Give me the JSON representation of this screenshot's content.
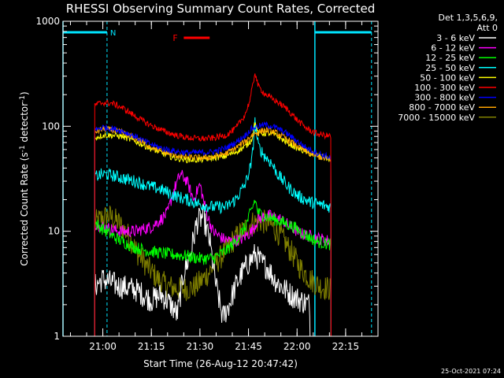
{
  "chart_data": {
    "type": "line",
    "title": "RHESSI Observing Summary Count Rates, Corrected",
    "xlabel": "Start Time (26-Aug-12 20:47:42)",
    "ylabel_main": "Corrected Count Rate (s",
    "ylabel_sup1": "-1",
    "ylabel_mid": " detector",
    "ylabel_sup2": "-1",
    "ylabel_end": ")",
    "y_scale": "log",
    "ylim": [
      1,
      1000
    ],
    "xlim": [
      47.7,
      145
    ],
    "x_ticks": [
      {
        "v": 60,
        "label": "21:00"
      },
      {
        "v": 75,
        "label": "21:15"
      },
      {
        "v": 90,
        "label": "21:30"
      },
      {
        "v": 105,
        "label": "21:45"
      },
      {
        "v": 120,
        "label": "22:00"
      },
      {
        "v": 135,
        "label": "22:15"
      }
    ],
    "y_ticks": [
      {
        "v": 1,
        "label": "1"
      },
      {
        "v": 10,
        "label": "10"
      },
      {
        "v": 100,
        "label": "100"
      },
      {
        "v": 1000,
        "label": "1000"
      }
    ],
    "legend_header": [
      "Det 1,3,5,6,9,",
      "Att 0"
    ],
    "legend_placement": "right-outside",
    "flag_labels": {
      "N": "N",
      "F": "F"
    },
    "flare_flag": {
      "start": 85,
      "end": 93,
      "color": "#ff0000"
    },
    "night_segments": [
      {
        "start": 47.7,
        "end": 61.3
      },
      {
        "start": 125.5,
        "end": 143
      }
    ],
    "vlines_dashed": [
      61.3,
      143
    ],
    "vlines_solid": [
      47.7,
      125.5
    ],
    "timestamp": "25-Oct-2021 07:24",
    "series": [
      {
        "name": "3 - 6 keV",
        "color": "#000000",
        "start": 57.5,
        "end": 124.0,
        "points": [
          [
            57.5,
            3
          ],
          [
            60,
            3.5
          ],
          [
            65,
            3.0
          ],
          [
            70,
            2.8
          ],
          [
            75,
            2.2
          ],
          [
            78,
            2.5
          ],
          [
            81,
            2.0
          ],
          [
            83,
            1.6
          ],
          [
            85,
            4
          ],
          [
            87,
            6
          ],
          [
            89,
            12
          ],
          [
            91,
            14
          ],
          [
            93,
            8
          ],
          [
            95,
            3
          ],
          [
            97,
            1.5
          ],
          [
            99,
            2.0
          ],
          [
            101,
            3
          ],
          [
            103,
            4
          ],
          [
            105,
            5
          ],
          [
            107,
            6
          ],
          [
            109,
            5
          ],
          [
            111,
            4.5
          ],
          [
            113,
            3.5
          ],
          [
            115,
            3
          ],
          [
            118,
            2.5
          ],
          [
            121,
            2.2
          ],
          [
            124,
            2.0
          ]
        ]
      },
      {
        "name": "6 - 12 keV",
        "color": "#ff00ff",
        "start": 57.5,
        "end": 130.5,
        "points": [
          [
            57.5,
            12
          ],
          [
            60,
            11
          ],
          [
            65,
            10
          ],
          [
            70,
            10
          ],
          [
            75,
            11
          ],
          [
            78,
            13
          ],
          [
            80,
            15
          ],
          [
            82,
            25
          ],
          [
            84,
            35
          ],
          [
            86,
            30
          ],
          [
            88,
            20
          ],
          [
            90,
            28
          ],
          [
            92,
            15
          ],
          [
            94,
            10
          ],
          [
            97,
            8.5
          ],
          [
            100,
            8
          ],
          [
            103,
            8.5
          ],
          [
            106,
            10
          ],
          [
            108,
            13
          ],
          [
            110,
            14
          ],
          [
            112,
            14
          ],
          [
            115,
            13
          ],
          [
            118,
            11
          ],
          [
            121,
            9.5
          ],
          [
            124,
            9
          ],
          [
            127,
            8.5
          ],
          [
            130.5,
            8
          ]
        ]
      },
      {
        "name": "12 - 25 keV",
        "color": "#00ff00",
        "start": 57.5,
        "end": 130.5,
        "points": [
          [
            57.5,
            12
          ],
          [
            60,
            10.5
          ],
          [
            63,
            9
          ],
          [
            66,
            8
          ],
          [
            70,
            7
          ],
          [
            74,
            6.5
          ],
          [
            78,
            6.2
          ],
          [
            82,
            6
          ],
          [
            86,
            5.8
          ],
          [
            90,
            5.5
          ],
          [
            94,
            5.5
          ],
          [
            98,
            6.5
          ],
          [
            101,
            8
          ],
          [
            104,
            11
          ],
          [
            106,
            16
          ],
          [
            107,
            20
          ],
          [
            108,
            15
          ],
          [
            110,
            14
          ],
          [
            113,
            13
          ],
          [
            116,
            12
          ],
          [
            119,
            11
          ],
          [
            122,
            9.5
          ],
          [
            126,
            8
          ],
          [
            130.5,
            7.5
          ]
        ]
      },
      {
        "name": "25 - 50 keV",
        "color": "#00ffff",
        "start": 57.5,
        "end": 130.5,
        "points": [
          [
            57.5,
            33
          ],
          [
            60,
            35
          ],
          [
            63,
            34
          ],
          [
            66,
            32
          ],
          [
            70,
            30
          ],
          [
            74,
            27
          ],
          [
            78,
            25
          ],
          [
            82,
            22
          ],
          [
            86,
            20
          ],
          [
            90,
            18
          ],
          [
            94,
            17
          ],
          [
            98,
            17
          ],
          [
            101,
            20
          ],
          [
            104,
            28
          ],
          [
            106,
            45
          ],
          [
            107,
            110
          ],
          [
            108,
            65
          ],
          [
            110,
            52
          ],
          [
            112,
            45
          ],
          [
            114,
            35
          ],
          [
            117,
            27
          ],
          [
            120,
            22
          ],
          [
            124,
            19
          ],
          [
            127,
            18
          ],
          [
            130.5,
            17
          ]
        ]
      },
      {
        "name": "50 - 100 keV",
        "color": "#ffff00",
        "start": 57.5,
        "end": 130.5,
        "points": [
          [
            57.5,
            78
          ],
          [
            60,
            82
          ],
          [
            63,
            82
          ],
          [
            66,
            80
          ],
          [
            70,
            72
          ],
          [
            74,
            63
          ],
          [
            78,
            56
          ],
          [
            82,
            50
          ],
          [
            86,
            48
          ],
          [
            90,
            48
          ],
          [
            94,
            50
          ],
          [
            98,
            52
          ],
          [
            101,
            57
          ],
          [
            104,
            64
          ],
          [
            106,
            75
          ],
          [
            107,
            110
          ],
          [
            108,
            85
          ],
          [
            110,
            86
          ],
          [
            112,
            85
          ],
          [
            114,
            80
          ],
          [
            117,
            70
          ],
          [
            120,
            62
          ],
          [
            124,
            55
          ],
          [
            127,
            52
          ],
          [
            130.5,
            48
          ]
        ]
      },
      {
        "name": "100 - 300 keV",
        "color": "#ff0000",
        "start": 57.5,
        "end": 130.5,
        "points": [
          [
            57.5,
            160
          ],
          [
            60,
            168
          ],
          [
            63,
            165
          ],
          [
            66,
            150
          ],
          [
            70,
            125
          ],
          [
            74,
            105
          ],
          [
            78,
            92
          ],
          [
            82,
            83
          ],
          [
            86,
            78
          ],
          [
            90,
            76
          ],
          [
            94,
            77
          ],
          [
            98,
            82
          ],
          [
            101,
            95
          ],
          [
            104,
            130
          ],
          [
            105.5,
            180
          ],
          [
            106.5,
            260
          ],
          [
            107,
            330
          ],
          [
            108,
            240
          ],
          [
            110,
            205
          ],
          [
            112,
            185
          ],
          [
            114,
            170
          ],
          [
            117,
            145
          ],
          [
            120,
            115
          ],
          [
            123,
            95
          ],
          [
            126,
            85
          ],
          [
            130.5,
            80
          ]
        ]
      },
      {
        "name": "300 - 800 keV",
        "color": "#0000ff",
        "start": 57.5,
        "end": 130.5,
        "points": [
          [
            57.5,
            92
          ],
          [
            60,
            98
          ],
          [
            63,
            95
          ],
          [
            66,
            90
          ],
          [
            70,
            80
          ],
          [
            74,
            69
          ],
          [
            78,
            62
          ],
          [
            82,
            58
          ],
          [
            86,
            56
          ],
          [
            90,
            56
          ],
          [
            94,
            57
          ],
          [
            98,
            62
          ],
          [
            101,
            70
          ],
          [
            104,
            82
          ],
          [
            106,
            95
          ],
          [
            108,
            100
          ],
          [
            110,
            103
          ],
          [
            112,
            101
          ],
          [
            114,
            95
          ],
          [
            117,
            85
          ],
          [
            120,
            72
          ],
          [
            123,
            62
          ],
          [
            126,
            56
          ],
          [
            130.5,
            50
          ]
        ]
      },
      {
        "name": "800 - 7000 keV",
        "color": "#ffa500",
        "start": 57.5,
        "end": 130.5,
        "points": [
          [
            57.5,
            88
          ],
          [
            60,
            94
          ],
          [
            63,
            92
          ],
          [
            66,
            87
          ],
          [
            70,
            77
          ],
          [
            74,
            66
          ],
          [
            78,
            58
          ],
          [
            82,
            53
          ],
          [
            86,
            51
          ],
          [
            90,
            50
          ],
          [
            94,
            51
          ],
          [
            98,
            55
          ],
          [
            101,
            62
          ],
          [
            104,
            72
          ],
          [
            106,
            82
          ],
          [
            108,
            88
          ],
          [
            110,
            92
          ],
          [
            112,
            90
          ],
          [
            114,
            85
          ],
          [
            117,
            75
          ],
          [
            120,
            65
          ],
          [
            123,
            57
          ],
          [
            126,
            52
          ],
          [
            130.5,
            47
          ]
        ]
      },
      {
        "name": "7000 - 15000 keV",
        "color": "#808000",
        "start": 57.5,
        "end": 130.5,
        "points": [
          [
            57.5,
            12
          ],
          [
            60,
            13.5
          ],
          [
            62,
            14
          ],
          [
            65,
            12
          ],
          [
            68,
            9
          ],
          [
            71,
            6
          ],
          [
            74,
            4.5
          ],
          [
            77,
            3.5
          ],
          [
            80,
            3
          ],
          [
            84,
            2.8
          ],
          [
            88,
            2.9
          ],
          [
            91,
            3.5
          ],
          [
            94,
            4.5
          ],
          [
            97,
            6
          ],
          [
            100,
            8
          ],
          [
            103,
            10
          ],
          [
            106,
            12
          ],
          [
            109,
            12.5
          ],
          [
            112,
            11.5
          ],
          [
            115,
            9
          ],
          [
            118,
            6.5
          ],
          [
            121,
            4.5
          ],
          [
            124,
            3.5
          ],
          [
            127,
            3
          ],
          [
            130.5,
            2.8
          ]
        ]
      }
    ]
  }
}
